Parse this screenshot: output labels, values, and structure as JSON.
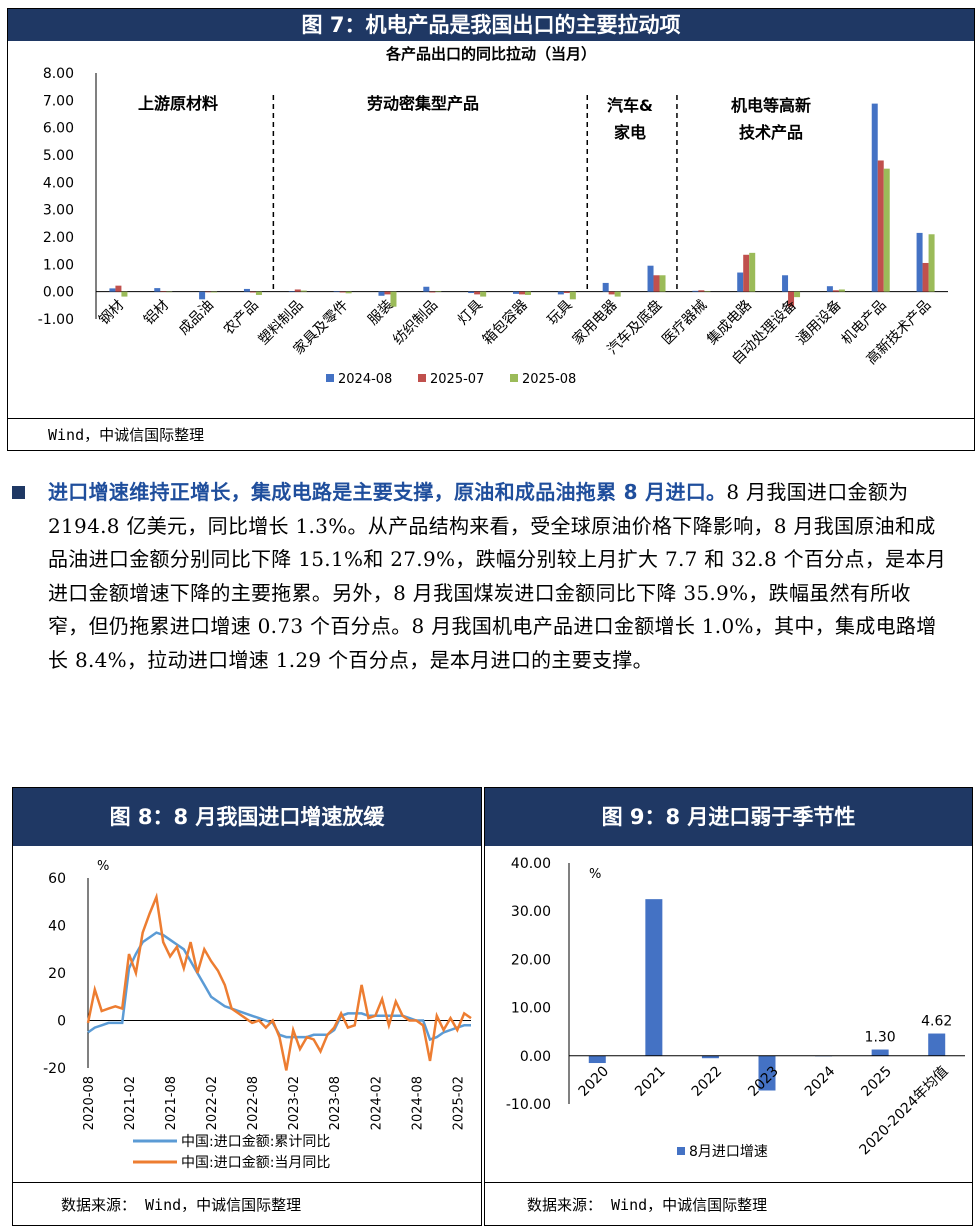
{
  "fig7": {
    "header": "图 7：机电产品是我国出口的主要拉动项",
    "source": "Wind，中诚信国际整理",
    "chart_data": {
      "type": "bar",
      "title": "各产品出口的同比拉动（当月）",
      "ylim": [
        -1,
        8
      ],
      "yticks": [
        "8.00",
        "7.00",
        "6.00",
        "5.00",
        "4.00",
        "3.00",
        "2.00",
        "1.00",
        "0.00",
        "-1.00"
      ],
      "categories": [
        "钢材",
        "铝材",
        "成品油",
        "农产品",
        "塑料制品",
        "家具及零件",
        "服装",
        "纺织制品",
        "灯具",
        "箱包容器",
        "玩具",
        "家用电器",
        "汽车及底盘",
        "医疗器械",
        "集成电路",
        "自动处理设备",
        "通用设备",
        "机电产品",
        "高新技术产品"
      ],
      "series": [
        {
          "name": "2024-08",
          "color": "#4472c4",
          "values": [
            0.12,
            0.13,
            -0.28,
            0.1,
            0.02,
            0.02,
            -0.15,
            0.18,
            -0.05,
            -0.08,
            -0.1,
            0.32,
            0.95,
            0.03,
            0.7,
            0.6,
            0.2,
            6.88,
            2.15
          ]
        },
        {
          "name": "2025-07",
          "color": "#c0504d",
          "values": [
            0.22,
            0.02,
            -0.02,
            -0.03,
            0.08,
            -0.03,
            -0.1,
            -0.03,
            -0.1,
            -0.1,
            -0.05,
            -0.1,
            0.6,
            0.05,
            1.35,
            -0.55,
            0.05,
            4.8,
            1.05
          ]
        },
        {
          "name": "2025-08",
          "color": "#9bbb59",
          "values": [
            -0.18,
            0.0,
            -0.03,
            -0.12,
            0.04,
            -0.06,
            -0.55,
            0.02,
            -0.18,
            -0.12,
            -0.28,
            -0.18,
            0.6,
            0.02,
            1.42,
            -0.2,
            0.08,
            4.5,
            2.1
          ]
        }
      ],
      "groups": [
        "上游原材料",
        "劳动密集型产品",
        "汽车&\n家电",
        "机电等高新\n技术产品"
      ]
    }
  },
  "paragraph": {
    "lead": "进口增速维持正增长，集成电路是主要支撑，原油和成品油拖累 8 月进口。",
    "body": "8 月我国进口金额为 2194.8 亿美元，同比增长 1.3%。从产品结构来看，受全球原油价格下降影响，8 月我国原油和成品油进口金额分别同比下降 15.1%和 27.9%，跌幅分别较上月扩大 7.7 和 32.8 个百分点，是本月进口金额增速下降的主要拖累。另外，8 月我国煤炭进口金额同比下降 35.9%，跌幅虽然有所收窄，但仍拖累进口增速 0.73 个百分点。8 月我国机电产品进口金额增长 1.0%，其中，集成电路增长 8.4%，拉动进口增速 1.29 个百分点，是本月进口的主要支撑。"
  },
  "fig8": {
    "header": "图 8：8 月我国进口增速放缓",
    "source": "数据来源：  Wind，中诚信国际整理",
    "chart_data": {
      "type": "line",
      "unit": "%",
      "ylim": [
        -20,
        60
      ],
      "yticks": [
        "60",
        "40",
        "20",
        "0",
        "-20"
      ],
      "xticks": [
        "2020-08",
        "2021-02",
        "2021-08",
        "2022-02",
        "2022-08",
        "2023-02",
        "2023-08",
        "2024-02",
        "2024-08",
        "2025-02",
        "2025-08"
      ],
      "series": [
        {
          "name": "中国:进口金额:累计同比",
          "color": "#5b9bd5",
          "values": [
            -5,
            -3,
            -2,
            -1,
            -1,
            -1,
            22,
            28,
            33,
            35,
            37,
            36,
            34,
            32,
            30,
            25,
            20,
            15,
            10,
            8,
            6,
            5,
            4,
            3,
            2,
            1,
            0,
            -1,
            -6,
            -7,
            -7,
            -7,
            -7,
            -6,
            -6,
            -6,
            -4,
            2,
            3,
            3,
            3,
            2,
            2,
            2,
            2,
            2,
            2,
            1,
            0,
            0,
            -8,
            -7,
            -5,
            -4,
            -3,
            -2,
            -2
          ]
        },
        {
          "name": "中国:进口金额:当月同比",
          "color": "#ed7d31",
          "values": [
            -1,
            13,
            4,
            5,
            6,
            5,
            28,
            20,
            37,
            45,
            52,
            33,
            27,
            31,
            22,
            33,
            20,
            30,
            25,
            21,
            15,
            5,
            3,
            1,
            -1,
            0,
            -3,
            0,
            -7,
            -21,
            -4,
            -12,
            -7,
            -8,
            -13,
            -6,
            -3,
            3,
            -3,
            -2,
            15,
            1,
            2,
            9,
            -2,
            8,
            2,
            0,
            0,
            -2,
            -17,
            2,
            -4,
            1,
            -4,
            3,
            1
          ]
        }
      ]
    }
  },
  "fig9": {
    "header": "图 9：8 月进口弱于季节性",
    "source": "数据来源：  Wind，中诚信国际整理",
    "chart_data": {
      "type": "bar",
      "unit": "%",
      "ylim": [
        -10,
        40
      ],
      "yticks": [
        "40.00",
        "30.00",
        "20.00",
        "10.00",
        "0.00",
        "-10.00"
      ],
      "categories": [
        "2020",
        "2021",
        "2022",
        "2023",
        "2024",
        "2025",
        "2020-2024年均值"
      ],
      "values": [
        -1.5,
        32.5,
        -0.5,
        -7.2,
        0.0,
        1.3,
        4.62
      ],
      "labels": [
        "",
        "",
        "",
        "",
        "",
        "1.30",
        "4.62"
      ],
      "series_name": "8月进口增速",
      "color": "#4472c4"
    }
  }
}
